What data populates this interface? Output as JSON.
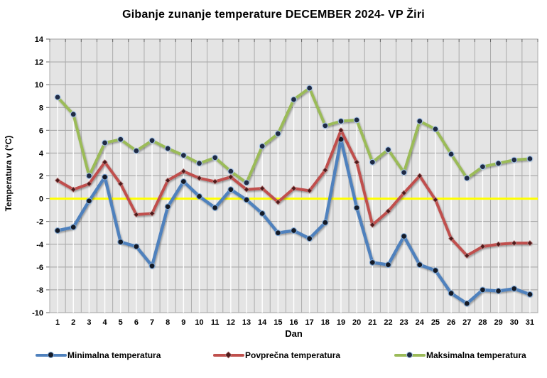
{
  "title": "Gibanje zunanje temperature DECEMBER 2024- VP Žiri",
  "chart_data": {
    "type": "line",
    "title": "Gibanje zunanje temperature DECEMBER 2024- VP Žiri",
    "xlabel": "Dan",
    "ylabel": "Temperatura v (°C)",
    "ylim": [
      -10,
      14
    ],
    "ytick_step": 2,
    "grid": true,
    "legend_position": "bottom",
    "plot_bg": "#e4e4e4",
    "grid_color_h": "#a0a0a0",
    "grid_color_v": "#ababab",
    "border_color": "#8c8c8c",
    "zero_line_color": "#ffff00",
    "drop_line_color": "#ffffff",
    "categories": [
      1,
      2,
      3,
      4,
      5,
      6,
      7,
      8,
      9,
      10,
      11,
      12,
      13,
      14,
      15,
      16,
      17,
      18,
      19,
      20,
      21,
      22,
      23,
      24,
      25,
      26,
      27,
      28,
      29,
      30,
      31
    ],
    "series": [
      {
        "name": "Minimalna temperatura",
        "color": "#4f81bd",
        "marker": "circle",
        "marker_fill": "#141a26",
        "marker_stroke": "#7fa7d4",
        "values": [
          -2.8,
          -2.5,
          -0.2,
          1.9,
          -3.8,
          -4.2,
          -5.9,
          -0.7,
          1.5,
          0.2,
          -0.8,
          0.8,
          -0.1,
          -1.3,
          -3.0,
          -2.8,
          -3.5,
          -2.1,
          5.2,
          -0.8,
          -5.6,
          -5.8,
          -3.3,
          -5.8,
          -6.3,
          -8.3,
          -9.2,
          -8.0,
          -8.1,
          -7.9,
          -8.4
        ]
      },
      {
        "name": "Povprečna temperatura",
        "color": "#c0504d",
        "marker": "diamond",
        "marker_fill": "#4f1a1a",
        "marker_stroke": "#b97c7c",
        "values": [
          1.6,
          0.8,
          1.3,
          3.2,
          1.3,
          -1.4,
          -1.3,
          1.6,
          2.4,
          1.8,
          1.5,
          1.9,
          0.8,
          0.9,
          -0.3,
          0.9,
          0.7,
          2.5,
          6.0,
          3.2,
          -2.3,
          -1.1,
          0.5,
          2.0,
          -0.1,
          -3.5,
          -5.0,
          -4.2,
          -4.0,
          -3.9,
          -3.9
        ]
      },
      {
        "name": "Maksimalna temperatura",
        "color": "#9bbb59",
        "marker": "circle",
        "marker_fill": "#1f2a44",
        "marker_stroke": "#a8c6e8",
        "values": [
          8.9,
          7.4,
          2.0,
          4.9,
          5.2,
          4.2,
          5.1,
          4.4,
          3.8,
          3.1,
          3.6,
          2.4,
          1.4,
          4.6,
          5.7,
          8.7,
          9.7,
          6.4,
          6.8,
          6.9,
          3.2,
          4.3,
          2.3,
          6.8,
          6.1,
          3.9,
          1.8,
          2.8,
          3.1,
          3.4,
          3.5
        ]
      }
    ]
  }
}
